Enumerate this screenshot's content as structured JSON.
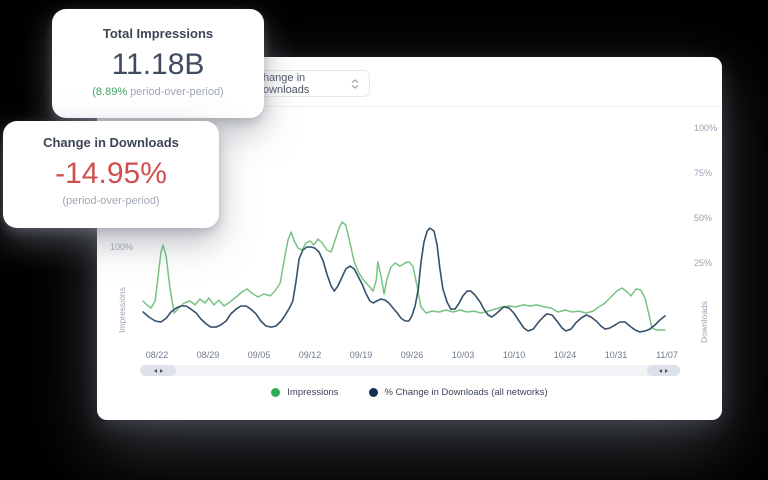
{
  "background_color": "#000000",
  "stat_cards": {
    "impressions": {
      "title": "Total Impressions",
      "value": "11.18B",
      "change": "(8.89%",
      "change_suffix": " period-over-period)",
      "change_color": "#41a35f"
    },
    "downloads": {
      "title": "Change in Downloads",
      "value": "-14.95%",
      "subtitle": "(period-over-period)",
      "value_color": "#d04f4f"
    }
  },
  "panel": {
    "dropdown": {
      "selected": "Change in Downloads"
    },
    "chart_data": {
      "type": "line",
      "x_labels": [
        "08/22",
        "08/29",
        "09/05",
        "09/12",
        "09/19",
        "09/26",
        "10/03",
        "10/10",
        "10/24",
        "10/31",
        "11/07"
      ],
      "y_axis_left": {
        "title": "Impressions",
        "ticks": [
          "100%"
        ]
      },
      "y_axis_right": {
        "title": "Downloads",
        "ticks": [
          "100%",
          "75%",
          "50%",
          "25%"
        ]
      },
      "grid": "off",
      "legend_position": "bottom-center",
      "legend": [
        {
          "label": "Impressions",
          "color": "#2fae56"
        },
        {
          "label": "% Change in Downloads (all networks)",
          "color": "#14304e"
        }
      ],
      "value_unit": "%",
      "series": [
        {
          "name": "Impressions",
          "color": "#76c384",
          "points": [
            [
              0.006,
              3.9
            ],
            [
              0.013,
              1.7
            ],
            [
              0.021,
              0.0
            ],
            [
              0.029,
              3.9
            ],
            [
              0.034,
              16.7
            ],
            [
              0.04,
              31.1
            ],
            [
              0.044,
              35.0
            ],
            [
              0.05,
              28.3
            ],
            [
              0.057,
              11.1
            ],
            [
              0.065,
              -2.8
            ],
            [
              0.074,
              0.0
            ],
            [
              0.084,
              2.8
            ],
            [
              0.095,
              3.9
            ],
            [
              0.105,
              1.7
            ],
            [
              0.114,
              5.0
            ],
            [
              0.124,
              2.8
            ],
            [
              0.131,
              5.6
            ],
            [
              0.141,
              1.7
            ],
            [
              0.15,
              4.4
            ],
            [
              0.16,
              1.1
            ],
            [
              0.171,
              3.3
            ],
            [
              0.183,
              6.1
            ],
            [
              0.194,
              8.9
            ],
            [
              0.204,
              10.6
            ],
            [
              0.213,
              8.3
            ],
            [
              0.225,
              6.1
            ],
            [
              0.236,
              7.8
            ],
            [
              0.248,
              6.7
            ],
            [
              0.257,
              9.4
            ],
            [
              0.267,
              13.9
            ],
            [
              0.274,
              25.6
            ],
            [
              0.282,
              37.8
            ],
            [
              0.288,
              42.2
            ],
            [
              0.293,
              37.8
            ],
            [
              0.301,
              33.3
            ],
            [
              0.309,
              32.2
            ],
            [
              0.316,
              36.1
            ],
            [
              0.324,
              37.2
            ],
            [
              0.331,
              35.0
            ],
            [
              0.339,
              38.3
            ],
            [
              0.347,
              36.1
            ],
            [
              0.356,
              32.2
            ],
            [
              0.364,
              31.1
            ],
            [
              0.371,
              37.2
            ],
            [
              0.379,
              44.4
            ],
            [
              0.385,
              47.8
            ],
            [
              0.392,
              46.1
            ],
            [
              0.4,
              36.1
            ],
            [
              0.408,
              25.6
            ],
            [
              0.417,
              19.4
            ],
            [
              0.427,
              15.0
            ],
            [
              0.436,
              12.2
            ],
            [
              0.444,
              9.4
            ],
            [
              0.45,
              15.6
            ],
            [
              0.453,
              25.6
            ],
            [
              0.459,
              17.8
            ],
            [
              0.465,
              7.8
            ],
            [
              0.47,
              15.6
            ],
            [
              0.478,
              22.8
            ],
            [
              0.486,
              25.0
            ],
            [
              0.495,
              23.3
            ],
            [
              0.505,
              25.0
            ],
            [
              0.512,
              25.6
            ],
            [
              0.52,
              23.3
            ],
            [
              0.528,
              11.7
            ],
            [
              0.535,
              0.6
            ],
            [
              0.545,
              -2.8
            ],
            [
              0.556,
              -1.7
            ],
            [
              0.57,
              -2.2
            ],
            [
              0.583,
              -1.1
            ],
            [
              0.596,
              -2.2
            ],
            [
              0.61,
              -1.1
            ],
            [
              0.623,
              -2.2
            ],
            [
              0.636,
              -1.7
            ],
            [
              0.65,
              -2.8
            ],
            [
              0.663,
              -1.7
            ],
            [
              0.676,
              -0.6
            ],
            [
              0.69,
              0.6
            ],
            [
              0.703,
              1.1
            ],
            [
              0.716,
              0.6
            ],
            [
              0.73,
              1.7
            ],
            [
              0.743,
              1.1
            ],
            [
              0.756,
              1.7
            ],
            [
              0.77,
              0.6
            ],
            [
              0.783,
              0.0
            ],
            [
              0.796,
              -2.2
            ],
            [
              0.81,
              -1.1
            ],
            [
              0.823,
              -2.2
            ],
            [
              0.836,
              -1.7
            ],
            [
              0.85,
              -2.8
            ],
            [
              0.863,
              -1.7
            ],
            [
              0.874,
              0.6
            ],
            [
              0.886,
              2.8
            ],
            [
              0.897,
              6.1
            ],
            [
              0.908,
              9.4
            ],
            [
              0.918,
              11.1
            ],
            [
              0.928,
              8.9
            ],
            [
              0.935,
              6.7
            ],
            [
              0.945,
              10.6
            ],
            [
              0.954,
              10.0
            ],
            [
              0.962,
              5.6
            ],
            [
              0.97,
              -4.4
            ],
            [
              0.975,
              -11.1
            ],
            [
              0.983,
              -12.2
            ],
            [
              0.992,
              -12.2
            ],
            [
              1.0,
              -12.2
            ]
          ]
        },
        {
          "name": "% Change in Downloads (all networks)",
          "color": "#35506c",
          "points": [
            [
              0.006,
              -2.2
            ],
            [
              0.017,
              -5.0
            ],
            [
              0.029,
              -7.2
            ],
            [
              0.04,
              -7.8
            ],
            [
              0.05,
              -5.6
            ],
            [
              0.059,
              -2.2
            ],
            [
              0.069,
              0.0
            ],
            [
              0.078,
              1.1
            ],
            [
              0.088,
              1.1
            ],
            [
              0.097,
              -0.6
            ],
            [
              0.107,
              -2.8
            ],
            [
              0.116,
              -6.1
            ],
            [
              0.126,
              -8.9
            ],
            [
              0.135,
              -10.6
            ],
            [
              0.145,
              -10.6
            ],
            [
              0.154,
              -9.4
            ],
            [
              0.164,
              -7.2
            ],
            [
              0.173,
              -3.3
            ],
            [
              0.183,
              -0.6
            ],
            [
              0.192,
              1.1
            ],
            [
              0.202,
              1.1
            ],
            [
              0.211,
              -0.6
            ],
            [
              0.221,
              -3.3
            ],
            [
              0.23,
              -7.2
            ],
            [
              0.24,
              -10.0
            ],
            [
              0.25,
              -10.6
            ],
            [
              0.259,
              -10.0
            ],
            [
              0.269,
              -7.2
            ],
            [
              0.278,
              -3.3
            ],
            [
              0.286,
              0.6
            ],
            [
              0.291,
              3.9
            ],
            [
              0.297,
              14.4
            ],
            [
              0.303,
              27.2
            ],
            [
              0.31,
              32.2
            ],
            [
              0.318,
              33.9
            ],
            [
              0.326,
              33.9
            ],
            [
              0.333,
              33.3
            ],
            [
              0.341,
              31.1
            ],
            [
              0.349,
              26.1
            ],
            [
              0.356,
              18.9
            ],
            [
              0.364,
              12.2
            ],
            [
              0.37,
              9.4
            ],
            [
              0.377,
              12.2
            ],
            [
              0.385,
              17.2
            ],
            [
              0.392,
              21.7
            ],
            [
              0.4,
              23.3
            ],
            [
              0.408,
              21.7
            ],
            [
              0.415,
              17.8
            ],
            [
              0.423,
              13.3
            ],
            [
              0.43,
              8.3
            ],
            [
              0.438,
              3.9
            ],
            [
              0.444,
              2.8
            ],
            [
              0.451,
              3.9
            ],
            [
              0.459,
              5.0
            ],
            [
              0.467,
              4.4
            ],
            [
              0.474,
              2.8
            ],
            [
              0.482,
              0.0
            ],
            [
              0.49,
              -2.8
            ],
            [
              0.497,
              -5.6
            ],
            [
              0.505,
              -7.2
            ],
            [
              0.512,
              -7.2
            ],
            [
              0.518,
              -4.4
            ],
            [
              0.524,
              1.1
            ],
            [
              0.53,
              10.6
            ],
            [
              0.535,
              25.0
            ],
            [
              0.541,
              36.7
            ],
            [
              0.547,
              42.8
            ],
            [
              0.552,
              44.4
            ],
            [
              0.56,
              42.8
            ],
            [
              0.566,
              35.0
            ],
            [
              0.571,
              22.2
            ],
            [
              0.577,
              10.6
            ],
            [
              0.585,
              3.3
            ],
            [
              0.592,
              -0.6
            ],
            [
              0.6,
              -0.6
            ],
            [
              0.608,
              2.8
            ],
            [
              0.615,
              6.7
            ],
            [
              0.623,
              9.4
            ],
            [
              0.63,
              9.4
            ],
            [
              0.638,
              7.2
            ],
            [
              0.648,
              3.3
            ],
            [
              0.655,
              -0.6
            ],
            [
              0.663,
              -3.9
            ],
            [
              0.67,
              -5.0
            ],
            [
              0.678,
              -3.3
            ],
            [
              0.686,
              -1.1
            ],
            [
              0.693,
              0.6
            ],
            [
              0.703,
              0.0
            ],
            [
              0.712,
              -2.8
            ],
            [
              0.722,
              -7.2
            ],
            [
              0.731,
              -11.1
            ],
            [
              0.739,
              -12.8
            ],
            [
              0.749,
              -11.7
            ],
            [
              0.758,
              -8.3
            ],
            [
              0.768,
              -5.0
            ],
            [
              0.775,
              -3.3
            ],
            [
              0.785,
              -3.9
            ],
            [
              0.794,
              -7.2
            ],
            [
              0.804,
              -11.1
            ],
            [
              0.811,
              -12.8
            ],
            [
              0.821,
              -11.7
            ],
            [
              0.83,
              -8.3
            ],
            [
              0.84,
              -5.6
            ],
            [
              0.85,
              -3.9
            ],
            [
              0.859,
              -5.0
            ],
            [
              0.869,
              -7.2
            ],
            [
              0.878,
              -10.0
            ],
            [
              0.886,
              -11.7
            ],
            [
              0.895,
              -11.1
            ],
            [
              0.905,
              -9.4
            ],
            [
              0.914,
              -7.8
            ],
            [
              0.924,
              -7.8
            ],
            [
              0.933,
              -10.0
            ],
            [
              0.943,
              -12.2
            ],
            [
              0.952,
              -13.3
            ],
            [
              0.962,
              -12.8
            ],
            [
              0.971,
              -11.7
            ],
            [
              0.981,
              -9.4
            ],
            [
              0.99,
              -6.7
            ],
            [
              1.0,
              -4.4
            ]
          ]
        }
      ]
    }
  }
}
